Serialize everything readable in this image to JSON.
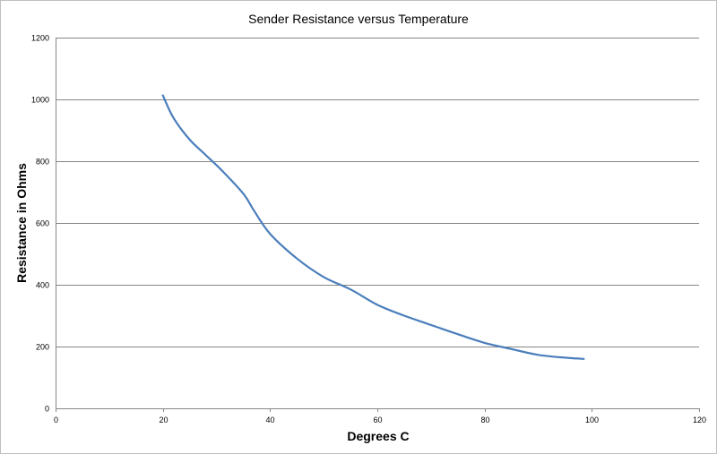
{
  "chart_data": {
    "type": "line",
    "title": "Sender Resistance versus Temperature",
    "xlabel": "Degrees C",
    "ylabel": "Resistance in Ohms",
    "xlim": [
      0,
      120
    ],
    "ylim": [
      0,
      1200
    ],
    "xticks": [
      0,
      20,
      40,
      60,
      80,
      100,
      120
    ],
    "yticks": [
      0,
      200,
      400,
      600,
      800,
      1000,
      1200
    ],
    "grid": "horizontal",
    "legend": "none",
    "series": [
      {
        "color": "#4a7ebb",
        "x": [
          20,
          22,
          25,
          28,
          31,
          35,
          37,
          40,
          45,
          50,
          55,
          60,
          65,
          70,
          75,
          80,
          85,
          90,
          95,
          98.5
        ],
        "y": [
          1013,
          940,
          870,
          820,
          770,
          695,
          640,
          565,
          485,
          425,
          385,
          335,
          300,
          270,
          240,
          212,
          192,
          173,
          164,
          160
        ]
      }
    ]
  }
}
